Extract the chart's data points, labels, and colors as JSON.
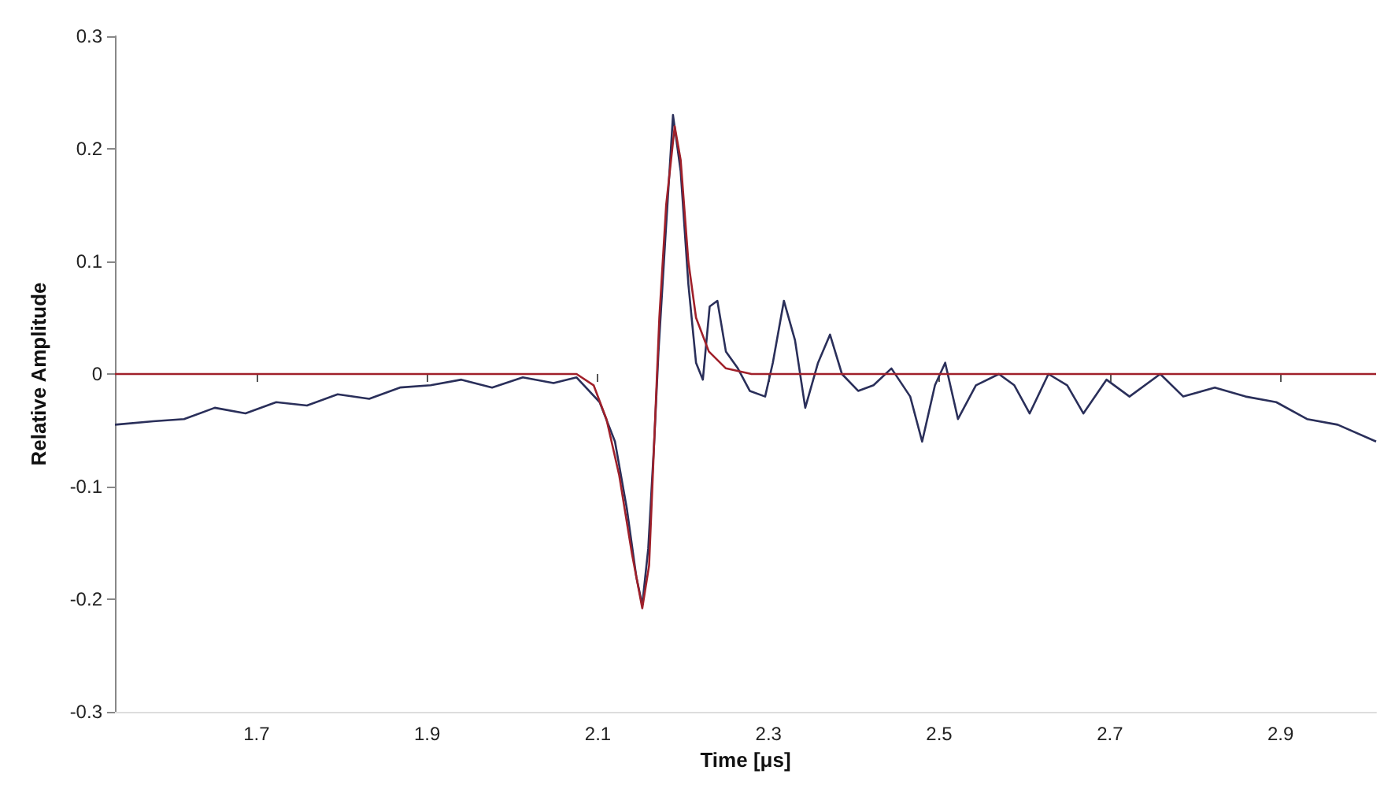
{
  "chart_data": {
    "type": "line",
    "xlabel": "Time [μs]",
    "ylabel": "Relative Amplitude",
    "xlim": [
      1.534,
      3.012
    ],
    "xticks": [
      1.7,
      1.9,
      2.1,
      2.3,
      2.5,
      2.7,
      2.9
    ],
    "ylim": [
      -0.3,
      0.3
    ],
    "yticks": [
      -0.3,
      -0.2,
      -0.1,
      0,
      0.1,
      0.2,
      0.3
    ],
    "grid": false,
    "marker": "none",
    "line_style": "solid",
    "series": [
      {
        "color": "#2a2f5a",
        "x": [
          1.534,
          1.579,
          1.615,
          1.651,
          1.687,
          1.723,
          1.759,
          1.795,
          1.832,
          1.868,
          1.904,
          1.94,
          1.976,
          2.012,
          2.048,
          2.075,
          2.102,
          2.12,
          2.134,
          2.145,
          2.152,
          2.159,
          2.166,
          2.171,
          2.179,
          2.188,
          2.197,
          2.206,
          2.215,
          2.223,
          2.231,
          2.24,
          2.25,
          2.264,
          2.278,
          2.296,
          2.305,
          2.318,
          2.331,
          2.343,
          2.358,
          2.372,
          2.386,
          2.405,
          2.423,
          2.444,
          2.466,
          2.48,
          2.495,
          2.507,
          2.522,
          2.543,
          2.57,
          2.588,
          2.606,
          2.628,
          2.65,
          2.669,
          2.696,
          2.723,
          2.759,
          2.786,
          2.823,
          2.859,
          2.895,
          2.931,
          2.967,
          3.012
        ],
        "values": [
          -0.045,
          -0.042,
          -0.04,
          -0.03,
          -0.035,
          -0.025,
          -0.028,
          -0.018,
          -0.022,
          -0.012,
          -0.01,
          -0.005,
          -0.012,
          -0.003,
          -0.008,
          -0.003,
          -0.025,
          -0.06,
          -0.12,
          -0.18,
          -0.205,
          -0.155,
          -0.06,
          0.02,
          0.12,
          0.23,
          0.18,
          0.08,
          0.01,
          -0.005,
          0.06,
          0.065,
          0.02,
          0.005,
          -0.015,
          -0.02,
          0.01,
          0.065,
          0.03,
          -0.03,
          0.01,
          0.035,
          0,
          -0.015,
          -0.01,
          0.005,
          -0.02,
          -0.06,
          -0.01,
          0.01,
          -0.04,
          -0.01,
          0,
          -0.01,
          -0.035,
          0,
          -0.01,
          -0.035,
          -0.005,
          -0.02,
          0,
          -0.02,
          -0.012,
          -0.02,
          -0.025,
          -0.04,
          -0.045,
          -0.06
        ]
      },
      {
        "color": "#a0202a",
        "x": [
          1.534,
          2.075,
          2.095,
          2.11,
          2.125,
          2.14,
          2.152,
          2.16,
          2.166,
          2.172,
          2.18,
          2.19,
          2.197,
          2.206,
          2.215,
          2.23,
          2.25,
          2.28,
          3.012
        ],
        "values": [
          0,
          0,
          -0.01,
          -0.04,
          -0.09,
          -0.16,
          -0.208,
          -0.17,
          -0.06,
          0.05,
          0.15,
          0.22,
          0.19,
          0.1,
          0.05,
          0.02,
          0.005,
          0,
          0
        ]
      }
    ]
  }
}
